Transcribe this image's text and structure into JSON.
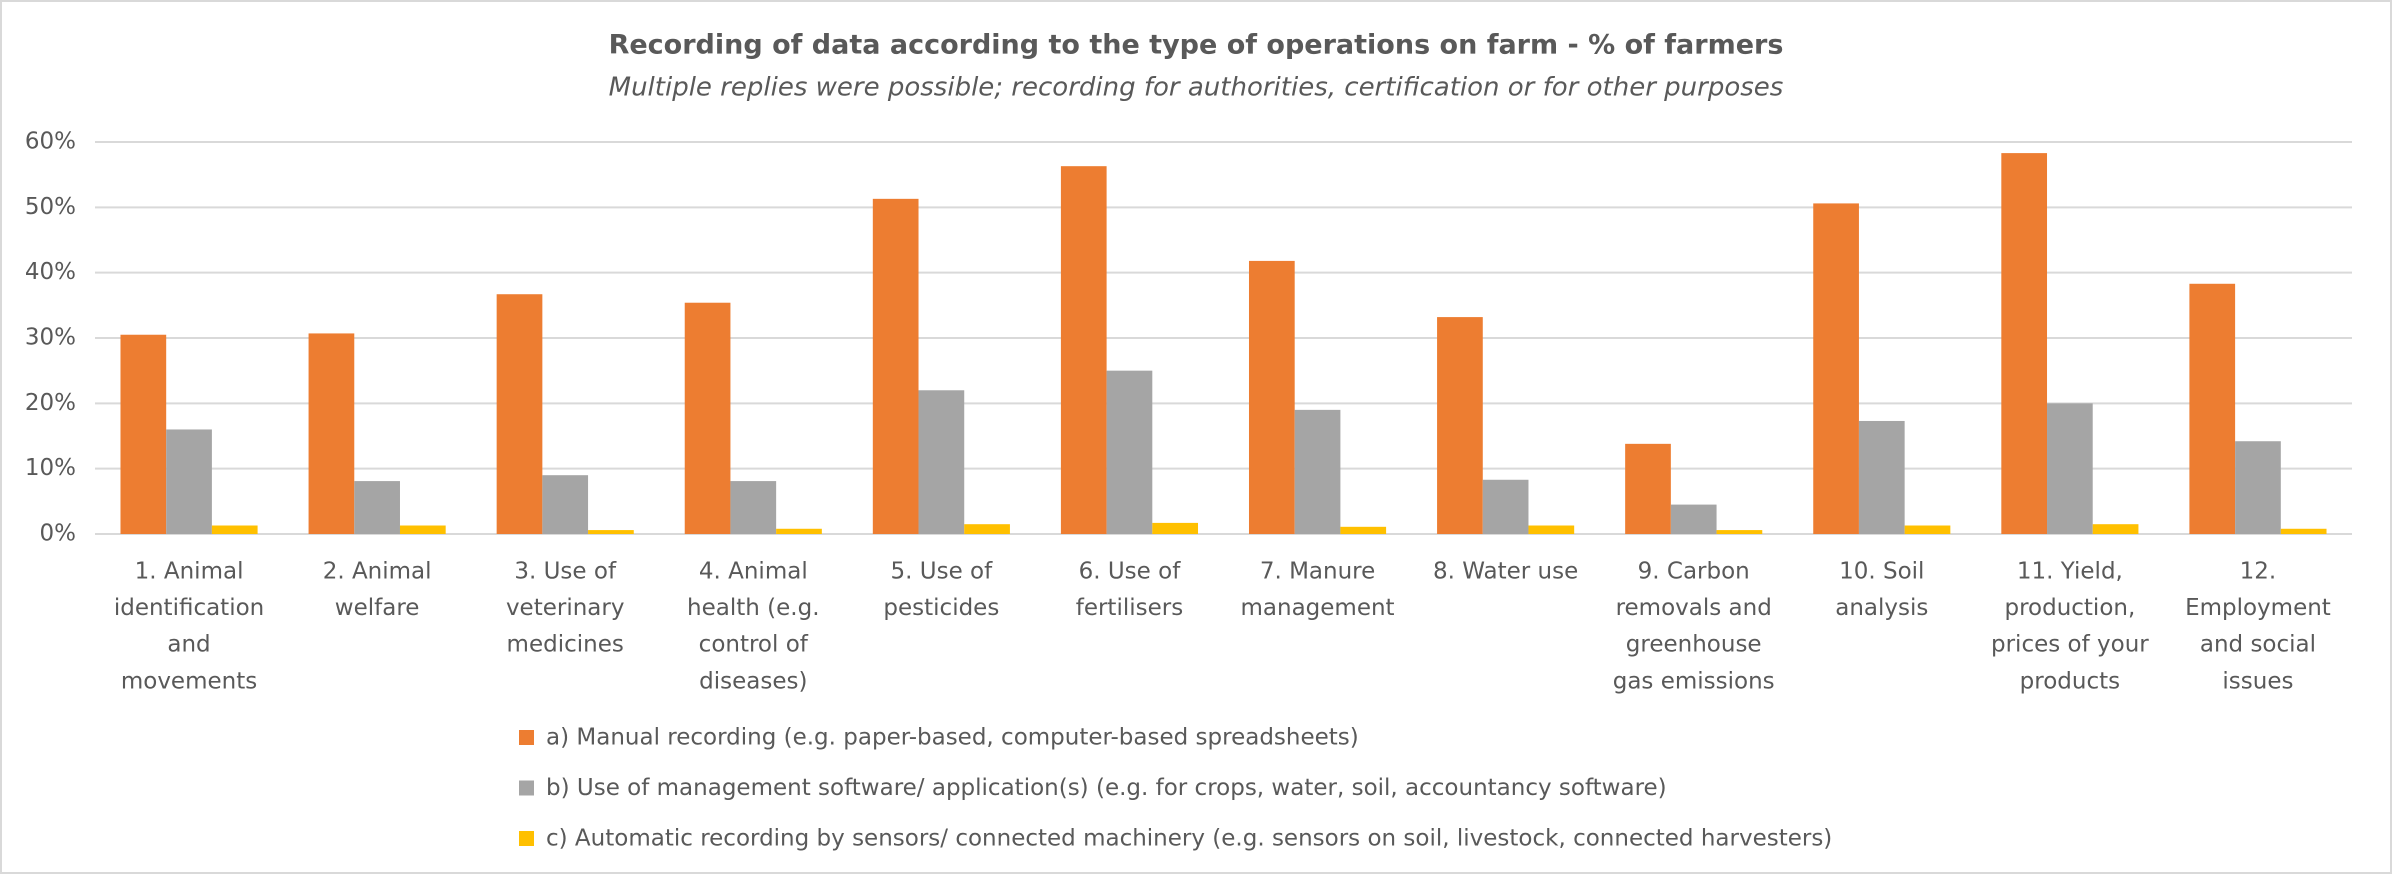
{
  "chart_data": {
    "type": "bar",
    "title": "Recording of data according to the type of operations on farm  - % of farmers",
    "subtitle": "Multiple replies were possible; recording for authorities, certification or for other purposes",
    "categories": [
      [
        "1. Animal",
        "identification",
        "and",
        "movements"
      ],
      [
        "2. Animal",
        "welfare"
      ],
      [
        "3. Use of",
        "veterinary",
        "medicines"
      ],
      [
        "4. Animal",
        "health (e.g.",
        "control of",
        "diseases)"
      ],
      [
        "5. Use of",
        "pesticides"
      ],
      [
        "6. Use of",
        "fertilisers"
      ],
      [
        "7. Manure",
        "management"
      ],
      [
        "8. Water use"
      ],
      [
        "9. Carbon",
        "removals and",
        "greenhouse",
        "gas emissions"
      ],
      [
        "10. Soil",
        "analysis"
      ],
      [
        "11. Yield,",
        "production,",
        "prices of your",
        "products"
      ],
      [
        "12.",
        "Employment",
        "and social",
        "issues"
      ]
    ],
    "series": [
      {
        "name": "a) Manual recording (e.g. paper-based, computer-based spreadsheets)",
        "color": "#ed7d31",
        "values": [
          30.5,
          30.7,
          36.7,
          35.4,
          51.3,
          56.3,
          41.8,
          33.2,
          13.8,
          50.6,
          58.3,
          38.3
        ]
      },
      {
        "name": "b) Use of  management software/ application(s) (e.g. for crops, water, soil, accountancy software)",
        "color": "#a5a5a5",
        "values": [
          16,
          8.1,
          9,
          8.1,
          22,
          25,
          19,
          8.3,
          4.5,
          17.3,
          20,
          14.2
        ]
      },
      {
        "name": "c) Automatic recording by sensors/ connected machinery (e.g. sensors on soil, livestock, connected harvesters)",
        "color": "#ffc000",
        "values": [
          1.3,
          1.3,
          0.6,
          0.8,
          1.5,
          1.7,
          1.1,
          1.3,
          0.6,
          1.3,
          1.5,
          0.8
        ]
      }
    ],
    "ylim": [
      0,
      60
    ],
    "yticks": [
      {
        "value": 0,
        "label": "0%"
      },
      {
        "value": 10,
        "label": "10%"
      },
      {
        "value": 20,
        "label": "20%"
      },
      {
        "value": 30,
        "label": "30%"
      },
      {
        "value": 40,
        "label": "40%"
      },
      {
        "value": 50,
        "label": "50%"
      },
      {
        "value": 60,
        "label": "60%"
      }
    ],
    "grid": true,
    "legend": "bottom"
  }
}
